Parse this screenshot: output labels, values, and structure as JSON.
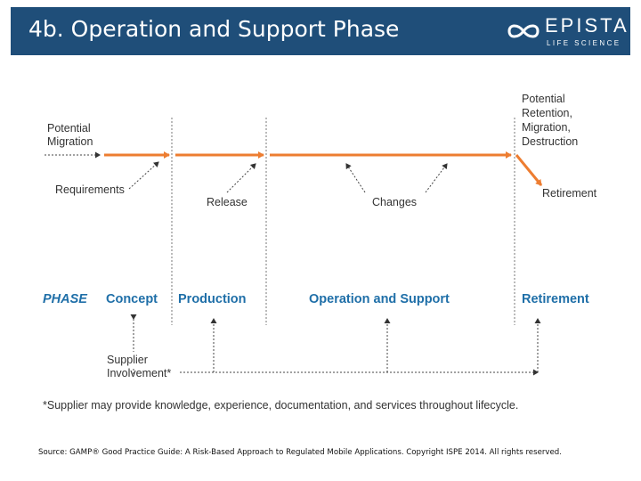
{
  "header": {
    "title": "4b. Operation and Support Phase",
    "logo_name": "EPISTA",
    "logo_sub": "LIFE SCIENCE",
    "background": "#1f4e79"
  },
  "diagram": {
    "labels": {
      "potential_migration": [
        "Potential",
        "Migration"
      ],
      "potential_retention": [
        "Potential",
        "Retention,",
        "Migration,",
        "Destruction"
      ],
      "requirements": "Requirements",
      "release": "Release",
      "changes": "Changes",
      "retirement": "Retirement",
      "supplier_involvement": [
        "Supplier",
        "Involvement*"
      ]
    },
    "phases": {
      "heading": "PHASE",
      "concept": "Concept",
      "production": "Production",
      "operation": "Operation and Support",
      "retirement": "Retirement"
    },
    "footnote": "*Supplier may provide knowledge, experience, documentation, and services throughout lifecycle.",
    "colors": {
      "arrow": "#ed7d31",
      "phase": "#1f6fa8",
      "dashed": "#555555"
    }
  },
  "source": "Source: GAMP® Good Practice Guide: A Risk-Based Approach to Regulated Mobile Applications. Copyright ISPE 2014. All rights reserved."
}
